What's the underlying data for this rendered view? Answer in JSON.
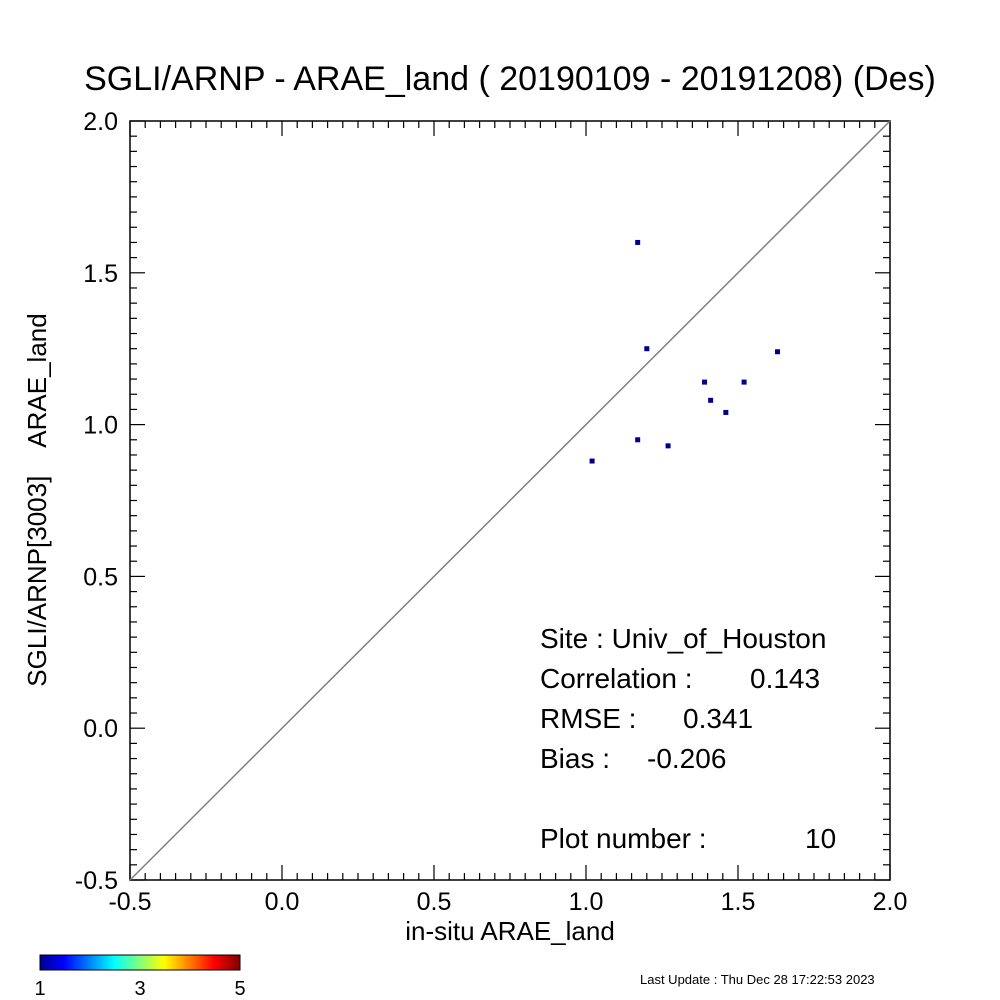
{
  "chart_data": {
    "type": "scatter",
    "title": "SGLI/ARNP - ARAE_land ( 20190109 - 20191208) (Des)",
    "xlabel": "in-situ ARAE_land",
    "ylabel_lines": [
      "SGLI/ARNP[3003]",
      "ARAE_land"
    ],
    "xlim": [
      -0.5,
      2.0
    ],
    "ylim": [
      -0.5,
      2.0
    ],
    "x_ticks": [
      "-0.5",
      "0.0",
      "0.5",
      "1.0",
      "1.5",
      "2.0"
    ],
    "y_ticks": [
      "-0.5",
      "0.0",
      "0.5",
      "1.0",
      "1.5",
      "2.0"
    ],
    "one_to_one_line": true,
    "grid": false,
    "point_color": "#00008b",
    "points": [
      {
        "x": 1.17,
        "y": 1.6
      },
      {
        "x": 1.2,
        "y": 1.25
      },
      {
        "x": 1.63,
        "y": 1.24
      },
      {
        "x": 1.39,
        "y": 1.14
      },
      {
        "x": 1.52,
        "y": 1.14
      },
      {
        "x": 1.41,
        "y": 1.08
      },
      {
        "x": 1.46,
        "y": 1.04
      },
      {
        "x": 1.17,
        "y": 0.95
      },
      {
        "x": 1.27,
        "y": 0.93
      },
      {
        "x": 1.02,
        "y": 0.88
      }
    ],
    "stats": {
      "site": "Site : Univ_of_Houston",
      "correlation_label": "Correlation :",
      "correlation": "0.143",
      "rmse_label": "RMSE :",
      "rmse": "0.341",
      "bias_label": "Bias :",
      "bias": "-0.206",
      "plot_number_label": "Plot number :",
      "plot_number": "10"
    },
    "colorbar": {
      "ticks": [
        "1",
        "3",
        "5"
      ],
      "colormap": "jet"
    }
  },
  "footer": {
    "last_update": "Last Update : Thu Dec 28 17:22:53 2023"
  }
}
